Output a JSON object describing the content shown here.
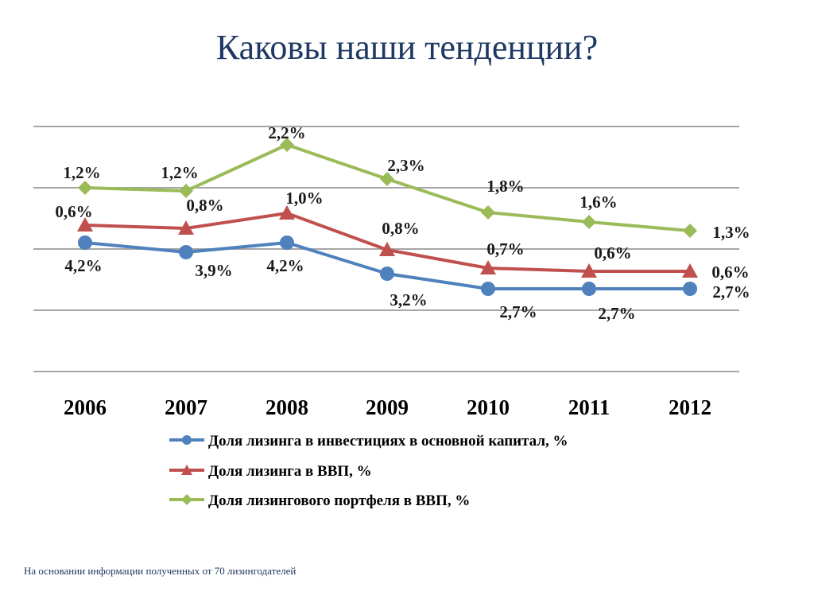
{
  "slide": {
    "title": "Каковы наши тенденции?",
    "footnote": "На основании информации полученных от 70 лизингодателей"
  },
  "chart_data": {
    "type": "line",
    "title": "",
    "xlabel": "",
    "ylabel": "",
    "grid": true,
    "legend_position": "bottom",
    "categories": [
      "2006",
      "2007",
      "2008",
      "2009",
      "2010",
      "2011",
      "2012"
    ],
    "series": [
      {
        "name": "Доля лизинга в инвестициях в основной капитал, %",
        "color": "#4f81bd",
        "marker": "circle",
        "labels": [
          "4,2%",
          "3,9%",
          "4,2%",
          "3,2%",
          "2,7%",
          "2,7%",
          "2,7%"
        ]
      },
      {
        "name": "Доля лизинга в ВВП, %",
        "color": "#c0504d",
        "marker": "triangle",
        "labels": [
          "0,6%",
          "0,8%",
          "1,0%",
          "0,8%",
          "0,7%",
          "0,6%",
          "0,6%"
        ]
      },
      {
        "name": "Доля лизингового портфеля в ВВП, %",
        "color": "#9bbb59",
        "marker": "diamond",
        "labels": [
          "1,2%",
          "1,2%",
          "2,2%",
          "2,3%",
          "1,8%",
          "1,6%",
          "1,3%"
        ]
      }
    ]
  }
}
